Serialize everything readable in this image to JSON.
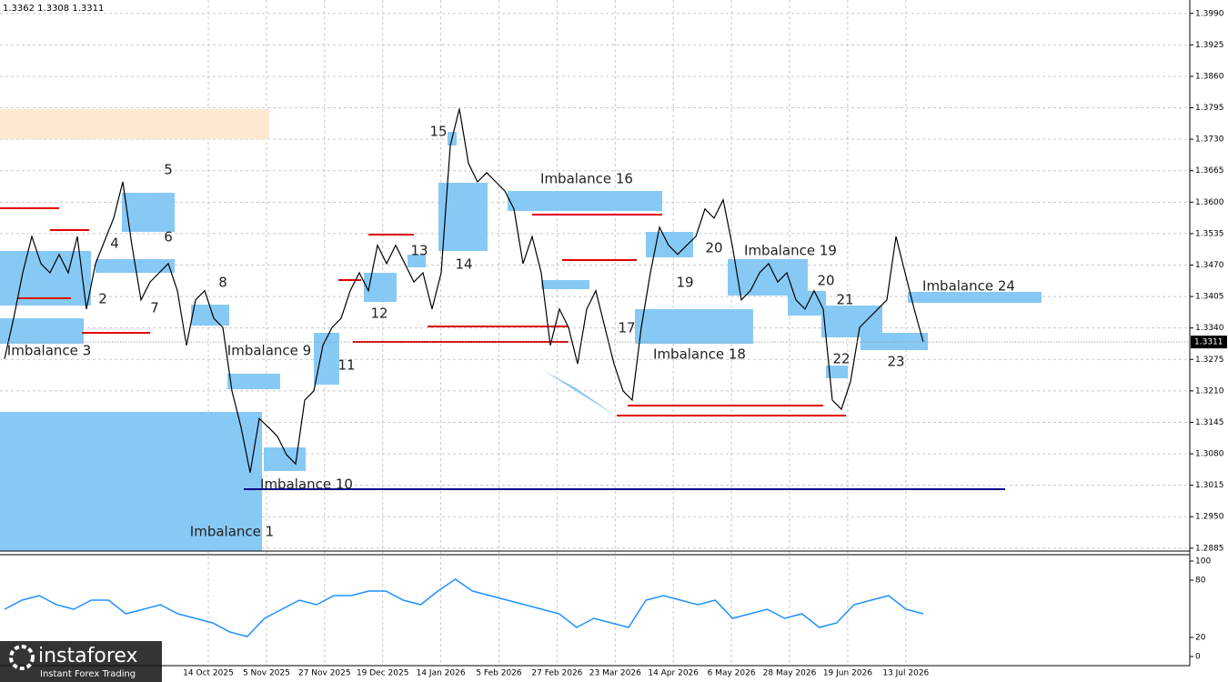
{
  "header": "1.3362 1.3308 1.3311",
  "logo": {
    "name": "instaforex",
    "tagline": "Instant Forex Trading"
  },
  "annotations": [
    "Imbalance 1",
    "Imbalance 3",
    "Imbalance 9",
    "Imbalance 10",
    "Imbalance 16",
    "Imbalance 18",
    "Imbalance 19",
    "Imbalance 24",
    "2",
    "4",
    "5",
    "6",
    "7",
    "8",
    "11",
    "12",
    "13",
    "14",
    "15",
    "17",
    "19",
    "20",
    "20",
    "21",
    "22",
    "23"
  ],
  "chart_data": [
    {
      "type": "line",
      "color": "#000000",
      "values": [
        1.3276,
        1.336,
        1.3454,
        1.3529,
        1.3473,
        1.3454,
        1.3492,
        1.3454,
        1.3529,
        1.3379,
        1.3473,
        1.352,
        1.3567,
        1.3642,
        1.3511,
        1.3398,
        1.3435,
        1.3454,
        1.3473,
        1.3417,
        1.3304,
        1.3398,
        1.3417,
        1.336,
        1.3341,
        1.321,
        1.3135,
        1.3041,
        1.3153,
        1.3135,
        1.3116,
        1.3078,
        1.3059,
        1.3191,
        1.321,
        1.3304,
        1.3341,
        1.336,
        1.3417,
        1.3454,
        1.3417,
        1.3511,
        1.3473,
        1.3511,
        1.3473,
        1.3435,
        1.3454,
        1.3379,
        1.3454,
        1.3717,
        1.3793,
        1.368,
        1.3642,
        1.3661,
        1.3642,
        1.3623,
        1.3586,
        1.3473,
        1.3529,
        1.3454,
        1.3304,
        1.3379,
        1.3341,
        1.3266,
        1.3379,
        1.3417,
        1.3341,
        1.3266,
        1.321,
        1.3191,
        1.3341,
        1.3454,
        1.3548,
        1.3511,
        1.3492,
        1.3511,
        1.3529,
        1.3586,
        1.3567,
        1.3605,
        1.3511,
        1.3398,
        1.3417,
        1.3454,
        1.3473,
        1.3435,
        1.3454,
        1.3398,
        1.3379,
        1.3417,
        1.3379,
        1.3191,
        1.3172,
        1.3229,
        1.3341,
        1.336,
        1.3379,
        1.3398,
        1.3529,
        1.3454,
        1.3379,
        1.3311
      ],
      "ylim": [
        1.2879,
        1.4014
      ],
      "yticks": [
        {
          "value": 1.399,
          "label": "1.3990"
        },
        1.3925,
        {
          "value": 1.386,
          "label": "1.3860"
        },
        1.3795,
        {
          "value": 1.373,
          "label": "1.3730"
        },
        1.3665,
        {
          "value": 1.36,
          "label": "1.3600"
        },
        1.3535,
        {
          "value": 1.347,
          "label": "1.3470"
        },
        1.3405,
        {
          "value": 1.334,
          "label": "1.3340"
        },
        1.3275,
        {
          "value": 1.321,
          "label": "1.3210"
        },
        1.3145,
        {
          "value": 1.308,
          "label": "1.3080"
        },
        {
          "value": 1.3015,
          "label": "1.3015"
        },
        {
          "value": 1.295,
          "label": "1.2950"
        },
        1.2885
      ],
      "date_labels": [
        "14 Oct 2025",
        "5 Nov 2025",
        "27 Nov 2025",
        "19 Dec 2025",
        "14 Jan 2026",
        "5 Feb 2026",
        "27 Feb 2026",
        "23 Mar 2026",
        "14 Apr 2026",
        "6 May 2026",
        "28 May 2026",
        "19 Jun 2026",
        "13 Jul 2026"
      ],
      "last_price": 1.3311,
      "grid": true
    },
    {
      "type": "line",
      "color": "#1e90ff",
      "values": [
        49.5,
        59,
        63.8,
        54.3,
        49.5,
        59,
        59,
        44.8,
        49.5,
        54.3,
        44.8,
        40,
        35.2,
        25.7,
        21,
        40,
        49.5,
        59,
        54.3,
        63.8,
        63.8,
        68.6,
        68.6,
        59,
        54.3,
        68.6,
        81,
        68.6,
        63.8,
        59,
        54.3,
        49.5,
        44.8,
        30.5,
        40,
        35.2,
        30.5,
        59,
        63.8,
        59,
        54.3,
        59,
        40,
        44.8,
        49.5,
        40,
        44.8,
        30.5,
        35.2,
        54.3,
        59,
        63.8,
        49.5,
        44.8
      ],
      "ylim": [
        0,
        100
      ],
      "yticks": [
        0,
        20,
        80,
        100
      ]
    }
  ]
}
